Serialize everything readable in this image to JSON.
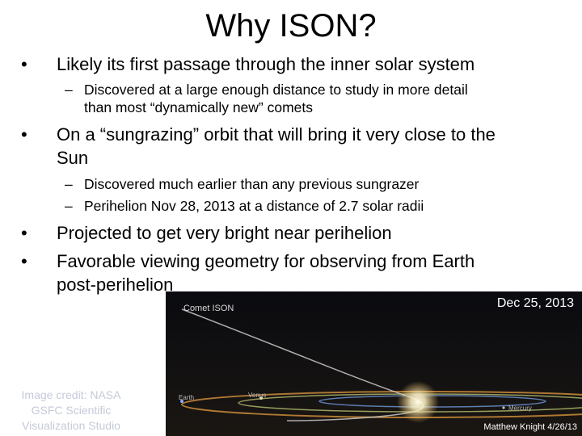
{
  "slide": {
    "title": "Why ISON?",
    "bullets": [
      {
        "lines": [
          "Likely its first passage through the inner solar system"
        ],
        "sub": [
          {
            "lines": [
              "Discovered at a large enough distance to study in more detail",
              "than most “dynamically new” comets"
            ]
          }
        ]
      },
      {
        "lines": [
          "On a “sungrazing” orbit that will bring it very close to the",
          "Sun"
        ],
        "sub": [
          {
            "lines": [
              "Discovered much earlier than any previous sungrazer"
            ]
          },
          {
            "lines": [
              "Perihelion Nov 28, 2013 at a distance of 2.7 solar radii"
            ]
          }
        ]
      },
      {
        "lines": [
          "Projected to get very bright near perihelion"
        ]
      },
      {
        "lines": [
          "Favorable viewing geometry for observing from Earth",
          "post-perihelion"
        ]
      }
    ],
    "bullet_symbol": "•",
    "dash_symbol": "–"
  },
  "figure": {
    "date_label": "Dec 25, 2013",
    "comet_label": "Comet ISON",
    "planet_labels": {
      "earth": "Earth",
      "venus": "Venus",
      "mercury": "Mercury"
    },
    "corner_credit": "Matthew Knight 4/26/13"
  },
  "image_credit": "Image credit: NASA GSFC Scientific Visualization Studio",
  "colors": {
    "background": "#ffffff",
    "photo_background": "#050608",
    "credit_text": "#c5cad8",
    "comet_orbit": "#c8c8c8",
    "earth_orbit": "#c98a3a",
    "venus_orbit": "#b8c070",
    "mercury_orbit": "#6a8fd0",
    "sun_glow": "#fff3c4"
  }
}
